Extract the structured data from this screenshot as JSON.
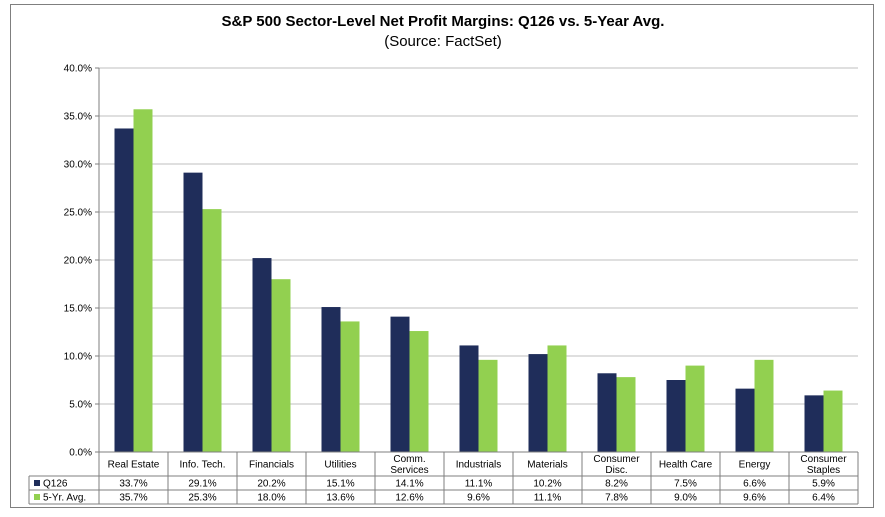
{
  "title": "S&P 500 Sector-Level Net Profit Margins: Q126 vs. 5-Year Avg.",
  "subtitle": "(Source: FactSet)",
  "colors": {
    "q126": "#1f2d5a",
    "avg5": "#92d050",
    "grid": "#bfbfbf",
    "axis": "#7f7f7f"
  },
  "chart_data": {
    "type": "bar",
    "title": "S&P 500 Sector-Level Net Profit Margins: Q126 vs. 5-Year Avg.",
    "subtitle": "(Source: FactSet)",
    "categories": [
      [
        "Real Estate"
      ],
      [
        "Info. Tech."
      ],
      [
        "Financials"
      ],
      [
        "Utilities"
      ],
      [
        "Comm.",
        "Services"
      ],
      [
        "Industrials"
      ],
      [
        "Materials"
      ],
      [
        "Consumer",
        "Disc."
      ],
      [
        "Health Care"
      ],
      [
        "Energy"
      ],
      [
        "Consumer",
        "Staples"
      ]
    ],
    "series": [
      {
        "name": "Q126",
        "values": [
          33.7,
          29.1,
          20.2,
          15.1,
          14.1,
          11.1,
          10.2,
          8.2,
          7.5,
          6.6,
          5.9
        ]
      },
      {
        "name": "5-Yr. Avg.",
        "values": [
          35.7,
          25.3,
          18.0,
          13.6,
          12.6,
          9.6,
          11.1,
          7.8,
          9.0,
          9.6,
          6.4
        ]
      }
    ],
    "yticks": [
      "0.0%",
      "5.0%",
      "10.0%",
      "15.0%",
      "20.0%",
      "25.0%",
      "30.0%",
      "35.0%",
      "40.0%"
    ],
    "ylim": [
      0,
      40
    ],
    "grid": true,
    "legend": "data table"
  }
}
